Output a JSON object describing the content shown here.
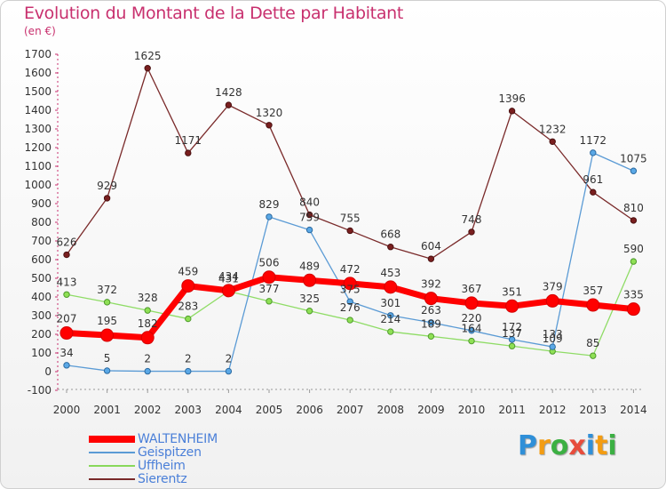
{
  "header": {
    "title": "Evolution du Montant de la Dette par Habitant",
    "unit": "(en €)"
  },
  "brand": {
    "logo_text": "Proxiti",
    "letters": [
      {
        "ch": "P",
        "color": "#2f8fd8"
      },
      {
        "ch": "r",
        "color": "#f39c12"
      },
      {
        "ch": "o",
        "color": "#3cb043"
      },
      {
        "ch": "x",
        "color": "#e74c3c"
      },
      {
        "ch": "i",
        "color": "#2f8fd8"
      },
      {
        "ch": "t",
        "color": "#f39c12"
      },
      {
        "ch": "i",
        "color": "#3cb043"
      }
    ]
  },
  "chart_data": {
    "type": "line",
    "title": "Evolution du Montant de la Dette par Habitant",
    "ylabel": "(en €)",
    "xlabel": "",
    "x": [
      "2000",
      "2001",
      "2002",
      "2003",
      "2004",
      "2005",
      "2006",
      "2007",
      "2008",
      "2009",
      "2010",
      "2011",
      "2012",
      "2013",
      "2014"
    ],
    "ylim": [
      -100,
      1700
    ],
    "yticks": [
      -100,
      0,
      100,
      200,
      300,
      400,
      500,
      600,
      700,
      800,
      900,
      1000,
      1100,
      1200,
      1300,
      1400,
      1500,
      1600,
      1700
    ],
    "grid": false,
    "legend": "bottom-left",
    "series": [
      {
        "name": "WALTENHEIM",
        "color": "#ff0000",
        "values": [
          207,
          195,
          182,
          459,
          434,
          506,
          489,
          472,
          453,
          392,
          367,
          351,
          379,
          357,
          335
        ]
      },
      {
        "name": "Geispitzen",
        "color": "#5b9bd5",
        "values": [
          34,
          5,
          2,
          2,
          2,
          829,
          759,
          375,
          301,
          263,
          220,
          172,
          133,
          1172,
          1075
        ]
      },
      {
        "name": "Uffheim",
        "color": "#88d85a",
        "values": [
          413,
          372,
          328,
          283,
          431,
          377,
          325,
          276,
          214,
          189,
          164,
          137,
          109,
          85,
          590
        ]
      },
      {
        "name": "Sierentz",
        "color": "#7a2a2a",
        "values": [
          626,
          929,
          1625,
          1171,
          1428,
          1320,
          840,
          755,
          668,
          604,
          748,
          1396,
          1232,
          961,
          810
        ]
      }
    ]
  }
}
